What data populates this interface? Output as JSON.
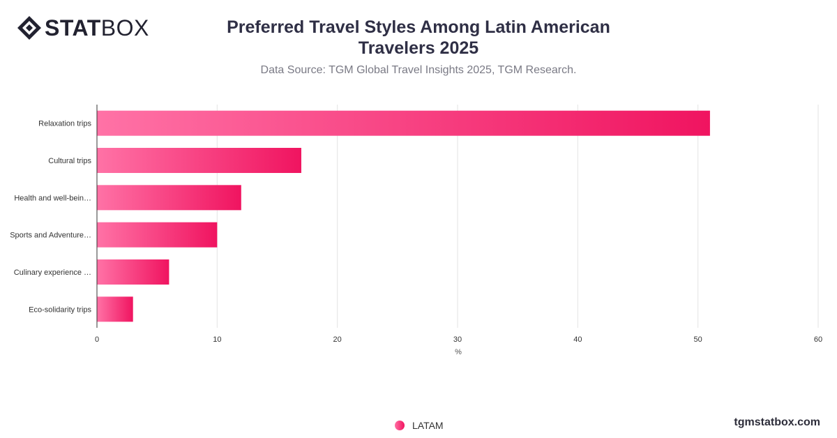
{
  "brand": {
    "logo_stat": "STAT",
    "logo_box": "BOX",
    "site": "tgmstatbox.com"
  },
  "header": {
    "title": "Preferred Travel Styles Among Latin American Travelers 2025",
    "subtitle": "Data Source: TGM Global Travel Insights 2025, TGM Research."
  },
  "colors": {
    "bar_start": "#ff72a6",
    "bar_end": "#f01460",
    "grid": "#e3e3e3",
    "axis": "#333333"
  },
  "chart_data": {
    "type": "bar",
    "orientation": "horizontal",
    "categories": [
      "Relaxation trips",
      "Cultural trips",
      "Health and well-bein…",
      "Sports and Adventure…",
      "Culinary experience …",
      "Eco-solidarity trips"
    ],
    "series": [
      {
        "name": "LATAM",
        "values": [
          51,
          17,
          12,
          10,
          6,
          3
        ]
      }
    ],
    "xlabel": "%",
    "ylabel": "",
    "xlim": [
      0,
      60
    ],
    "xticks": [
      0,
      10,
      20,
      30,
      40,
      50,
      60
    ],
    "grid": true,
    "legend": "bottom-center"
  }
}
